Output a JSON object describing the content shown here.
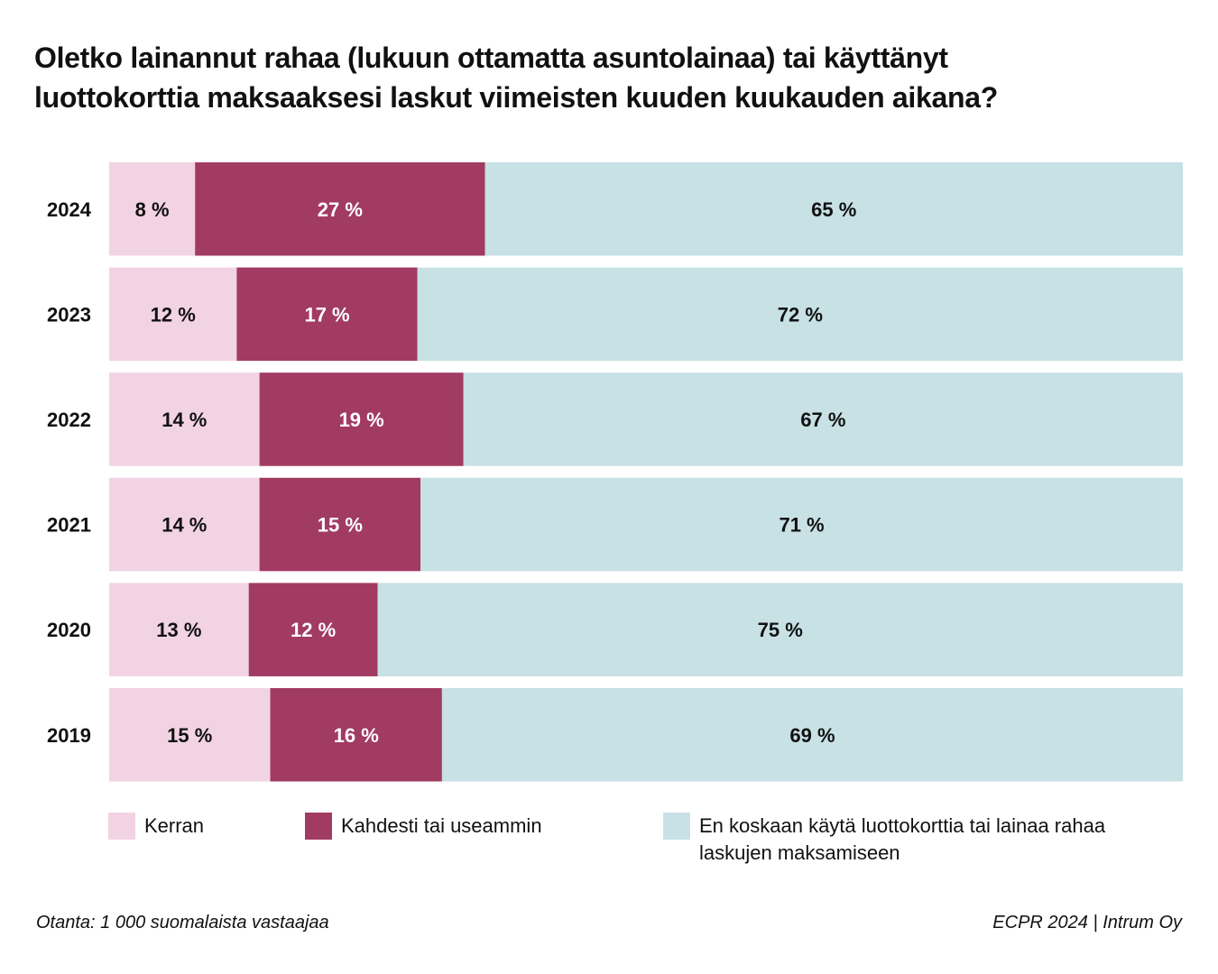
{
  "chart_data": {
    "type": "bar",
    "orientation": "horizontal",
    "stacked": true,
    "title": "Oletko lainannut rahaa (lukuun ottamatta asuntolainaa) tai käyttänyt luottokorttia maksaaksesi laskut viimeisten kuuden kuukauden aikana?",
    "title_lines": [
      "Oletko lainannut rahaa (lukuun ottamatta asuntolainaa) tai käyttänyt",
      "luottokorttia maksaaksesi laskut viimeisten kuuden kuukauden aikana?"
    ],
    "categories": [
      "2024",
      "2023",
      "2022",
      "2021",
      "2020",
      "2019"
    ],
    "series": [
      {
        "name": "Kerran",
        "color": "#f2d3e3",
        "label_color": "#111111",
        "values": [
          8,
          12,
          14,
          14,
          13,
          15
        ]
      },
      {
        "name": "Kahdesti tai useammin",
        "color": "#a13b62",
        "label_color": "#ffffff",
        "values": [
          27,
          17,
          19,
          15,
          12,
          16
        ]
      },
      {
        "name": "En koskaan käytä luottokorttia tai lainaa rahaa laskujen maksamiseen",
        "color": "#c7e1e5",
        "label_color": "#111111",
        "values": [
          65,
          72,
          67,
          71,
          75,
          69
        ]
      }
    ],
    "value_suffix": " %",
    "legend_lines": [
      [
        "Kerran"
      ],
      [
        "Kahdesti tai useammin"
      ],
      [
        "En koskaan käytä luottokorttia tai lainaa rahaa",
        "laskujen maksamiseen"
      ]
    ],
    "legend_placement": "bottom",
    "grid": false,
    "xlim": [
      0,
      100
    ]
  },
  "footer": {
    "source_left": "Otanta: 1 000 suomalaista vastaajaa",
    "source_right": "ECPR 2024 | Intrum Oy"
  }
}
